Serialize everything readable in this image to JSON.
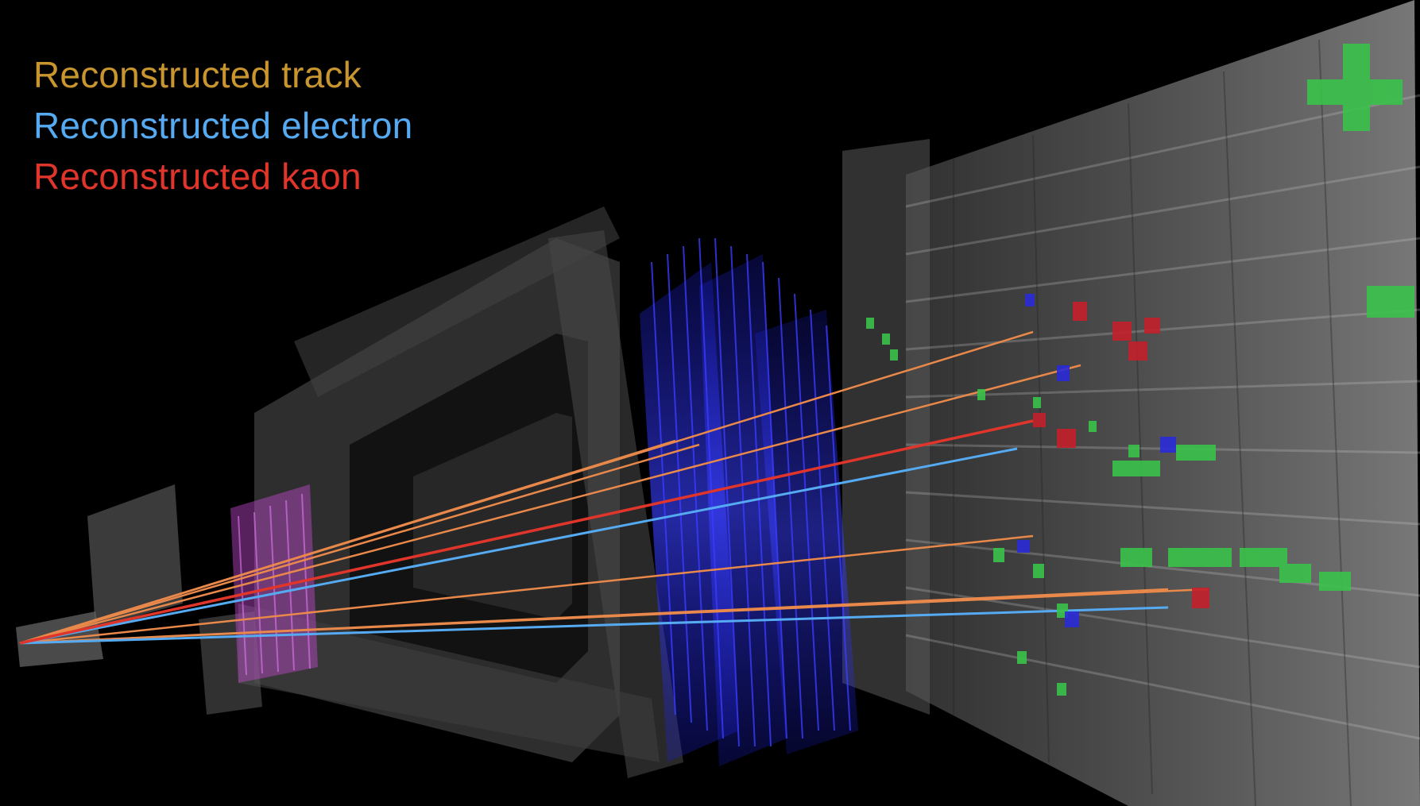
{
  "legend": {
    "items": [
      {
        "label": "Reconstructed track",
        "color": "#c8952f"
      },
      {
        "label": "Reconstructed electron",
        "color": "#55aaf2"
      },
      {
        "label": "Reconstructed kaon",
        "color": "#e0352b"
      }
    ]
  },
  "colors": {
    "background": "#000000",
    "detector_structure": "#3a3a3a",
    "tracking_planes": "#2a2cf0",
    "vertex_detector": "#c04ad0",
    "calorimeter": "#9a9a9a",
    "muon_hits": "#3ac24a",
    "calorimeter_hits_red": "#c3202b",
    "calorimeter_hits_blue": "#2a2ad8"
  }
}
